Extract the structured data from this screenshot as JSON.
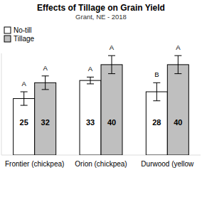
{
  "chart_data": {
    "type": "bar",
    "title": "Effects of Tillage on Grain Yield",
    "subtitle": "Grant, NE - 2018",
    "categories": [
      "Frontier (chickpea)",
      "Orion (chickpea)",
      "Durwood (yellow"
    ],
    "series": [
      {
        "name": "No-till",
        "color": "#ffffff",
        "values": [
          25,
          33,
          28
        ],
        "errors": [
          3,
          1.5,
          4
        ],
        "letters": [
          "A",
          "A",
          "B"
        ]
      },
      {
        "name": "Tillage",
        "color": "#bfbfbf",
        "values": [
          32,
          40,
          40
        ],
        "errors": [
          3,
          4,
          4
        ],
        "letters": [
          "A",
          "A",
          "A"
        ]
      }
    ],
    "ylim": [
      0,
      45
    ],
    "tick_labels": "x",
    "legend": "top-left",
    "data_labels": true
  }
}
